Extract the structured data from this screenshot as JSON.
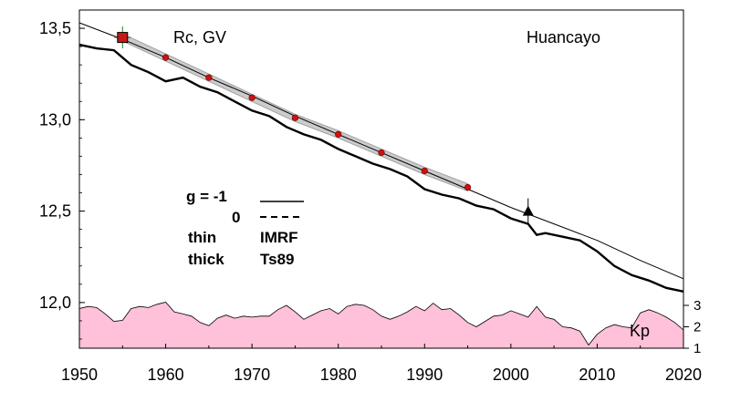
{
  "chart_data": {
    "type": "line",
    "title_left": "Rc, GV",
    "title_right": "Huancayo",
    "xlim": [
      1950,
      2020
    ],
    "ylim": [
      11.75,
      13.6
    ],
    "x_ticks": [
      "1950",
      "1960",
      "1970",
      "1980",
      "1990",
      "2000",
      "2010",
      "2020"
    ],
    "y_ticks": [
      "12,0",
      "12,5",
      "13,0",
      "13,5"
    ],
    "grid": false,
    "series": [
      {
        "style": "thin",
        "x": [
          1950,
          1955,
          1960,
          1965,
          1970,
          1975,
          1980,
          1985,
          1990,
          1995,
          2000,
          2005,
          2010,
          2015,
          2020
        ],
        "values": [
          13.53,
          13.44,
          13.34,
          13.23,
          13.13,
          13.02,
          12.92,
          12.82,
          12.72,
          12.62,
          12.52,
          12.43,
          12.34,
          12.23,
          12.13
        ]
      },
      {
        "style": "thick",
        "x": [
          1950,
          1952,
          1954,
          1956,
          1958,
          1960,
          1962,
          1964,
          1966,
          1968,
          1970,
          1972,
          1974,
          1976,
          1978,
          1980,
          1982,
          1984,
          1986,
          1988,
          1990,
          1992,
          1994,
          1996,
          1998,
          2000,
          2002,
          2003,
          2004,
          2006,
          2008,
          2010,
          2012,
          2014,
          2016,
          2018,
          2020
        ],
        "values": [
          13.41,
          13.39,
          13.38,
          13.3,
          13.26,
          13.21,
          13.23,
          13.18,
          13.15,
          13.1,
          13.05,
          13.02,
          12.96,
          12.92,
          12.89,
          12.84,
          12.8,
          12.76,
          12.73,
          12.69,
          12.62,
          12.59,
          12.57,
          12.53,
          12.51,
          12.46,
          12.43,
          12.37,
          12.38,
          12.36,
          12.34,
          12.28,
          12.2,
          12.15,
          12.12,
          12.08,
          12.06
        ]
      },
      {
        "style": "thin",
        "x": [
          1955,
          1960,
          1965,
          1970,
          1975,
          1980,
          1985,
          1990,
          1995
        ],
        "values": [
          13.45,
          13.34,
          13.23,
          13.12,
          13.01,
          12.92,
          12.82,
          12.72,
          12.63
        ]
      }
    ],
    "markers": [
      {
        "shape": "square",
        "x": 1955,
        "y": 13.45,
        "error": 0.06
      },
      {
        "shape": "triangle",
        "x": 2002,
        "y": 12.5,
        "error": 0.07
      }
    ],
    "kp": {
      "label": "Kp",
      "ylim": [
        1,
        3
      ],
      "ticks": [
        "1",
        "2",
        "3"
      ],
      "color": "#ffc0d9",
      "x": [
        1950,
        1951,
        1952,
        1953,
        1954,
        1955,
        1956,
        1957,
        1958,
        1959,
        1960,
        1961,
        1962,
        1963,
        1964,
        1965,
        1966,
        1967,
        1968,
        1969,
        1970,
        1971,
        1972,
        1973,
        1974,
        1975,
        1976,
        1977,
        1978,
        1979,
        1980,
        1981,
        1982,
        1983,
        1984,
        1985,
        1986,
        1987,
        1988,
        1989,
        1990,
        1991,
        1992,
        1993,
        1994,
        1995,
        1996,
        1997,
        1998,
        1999,
        2000,
        2001,
        2002,
        2003,
        2004,
        2005,
        2006,
        2007,
        2008,
        2009,
        2010,
        2011,
        2012,
        2013,
        2014,
        2015,
        2016,
        2017,
        2018,
        2019,
        2020
      ],
      "values": [
        2.85,
        2.95,
        2.9,
        2.6,
        2.25,
        2.3,
        2.85,
        2.95,
        2.9,
        3.05,
        3.15,
        2.7,
        2.6,
        2.5,
        2.2,
        2.05,
        2.4,
        2.55,
        2.4,
        2.5,
        2.45,
        2.5,
        2.5,
        2.8,
        3.0,
        2.7,
        2.35,
        2.55,
        2.75,
        2.85,
        2.6,
        2.95,
        3.05,
        3.0,
        2.8,
        2.5,
        2.35,
        2.5,
        2.7,
        2.95,
        2.75,
        3.1,
        2.8,
        2.85,
        2.55,
        2.2,
        2.0,
        2.25,
        2.5,
        2.55,
        2.75,
        2.6,
        2.45,
        2.95,
        2.45,
        2.35,
        2.0,
        1.95,
        1.8,
        1.15,
        1.65,
        1.95,
        2.1,
        2.0,
        1.95,
        2.65,
        2.8,
        2.65,
        2.45,
        2.2,
        1.85
      ]
    }
  },
  "legend": {
    "g_label": "g  = -1",
    "zero_label": "0",
    "thin_label": "thin",
    "thick_label": "thick",
    "imrf_label": "IMRF",
    "ts89_label": "Ts89"
  }
}
